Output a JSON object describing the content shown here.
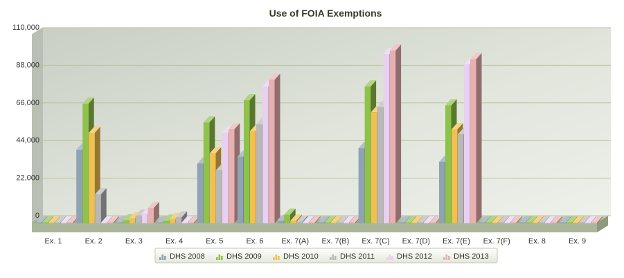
{
  "chart_data": {
    "type": "bar",
    "title": "Use of FOIA Exemptions",
    "xlabel": "",
    "ylabel": "",
    "ylim": [
      0,
      110000
    ],
    "yticks": [
      "0",
      "22,000",
      "44,000",
      "66,000",
      "88,000",
      "110,000"
    ],
    "grid": true,
    "legend_position": "bottom",
    "categories": [
      "Ex. 1",
      "Ex. 2",
      "Ex. 3",
      "Ex. 4",
      "Ex. 5",
      "Ex. 6",
      "Ex. 7(A)",
      "Ex. 7(B)",
      "Ex. 7(C)",
      "Ex. 7(D)",
      "Ex. 7(E)",
      "Ex. 7(F)",
      "Ex. 8",
      "Ex. 9"
    ],
    "series": [
      {
        "name": "DHS 2008",
        "color": "#8fa3b4",
        "values": [
          0,
          43000,
          300,
          500,
          35000,
          39000,
          1500,
          0,
          44000,
          0,
          36000,
          0,
          0,
          0
        ]
      },
      {
        "name": "DHS 2009",
        "color": "#8fc24a",
        "values": [
          0,
          70000,
          1800,
          1500,
          59000,
          72000,
          5000,
          0,
          80000,
          100,
          69000,
          0,
          0,
          0
        ]
      },
      {
        "name": "DHS 2010",
        "color": "#f0c050",
        "values": [
          0,
          53000,
          3000,
          2500,
          41000,
          54000,
          1500,
          0,
          65000,
          100,
          55000,
          0,
          0,
          0
        ]
      },
      {
        "name": "DHS 2011",
        "color": "#b8b8b8",
        "values": [
          0,
          17000,
          4500,
          3500,
          31000,
          58000,
          1000,
          0,
          68000,
          50,
          52000,
          0,
          0,
          0
        ]
      },
      {
        "name": "DHS 2012",
        "color": "#e8d0f0",
        "values": [
          0,
          0,
          5500,
          0,
          53000,
          80000,
          500,
          0,
          99000,
          0,
          93000,
          0,
          0,
          0
        ]
      },
      {
        "name": "DHS 2013",
        "color": "#e8b0b0",
        "values": [
          0,
          0,
          9000,
          0,
          55000,
          84000,
          0,
          0,
          101000,
          0,
          96000,
          0,
          0,
          0
        ]
      }
    ]
  }
}
